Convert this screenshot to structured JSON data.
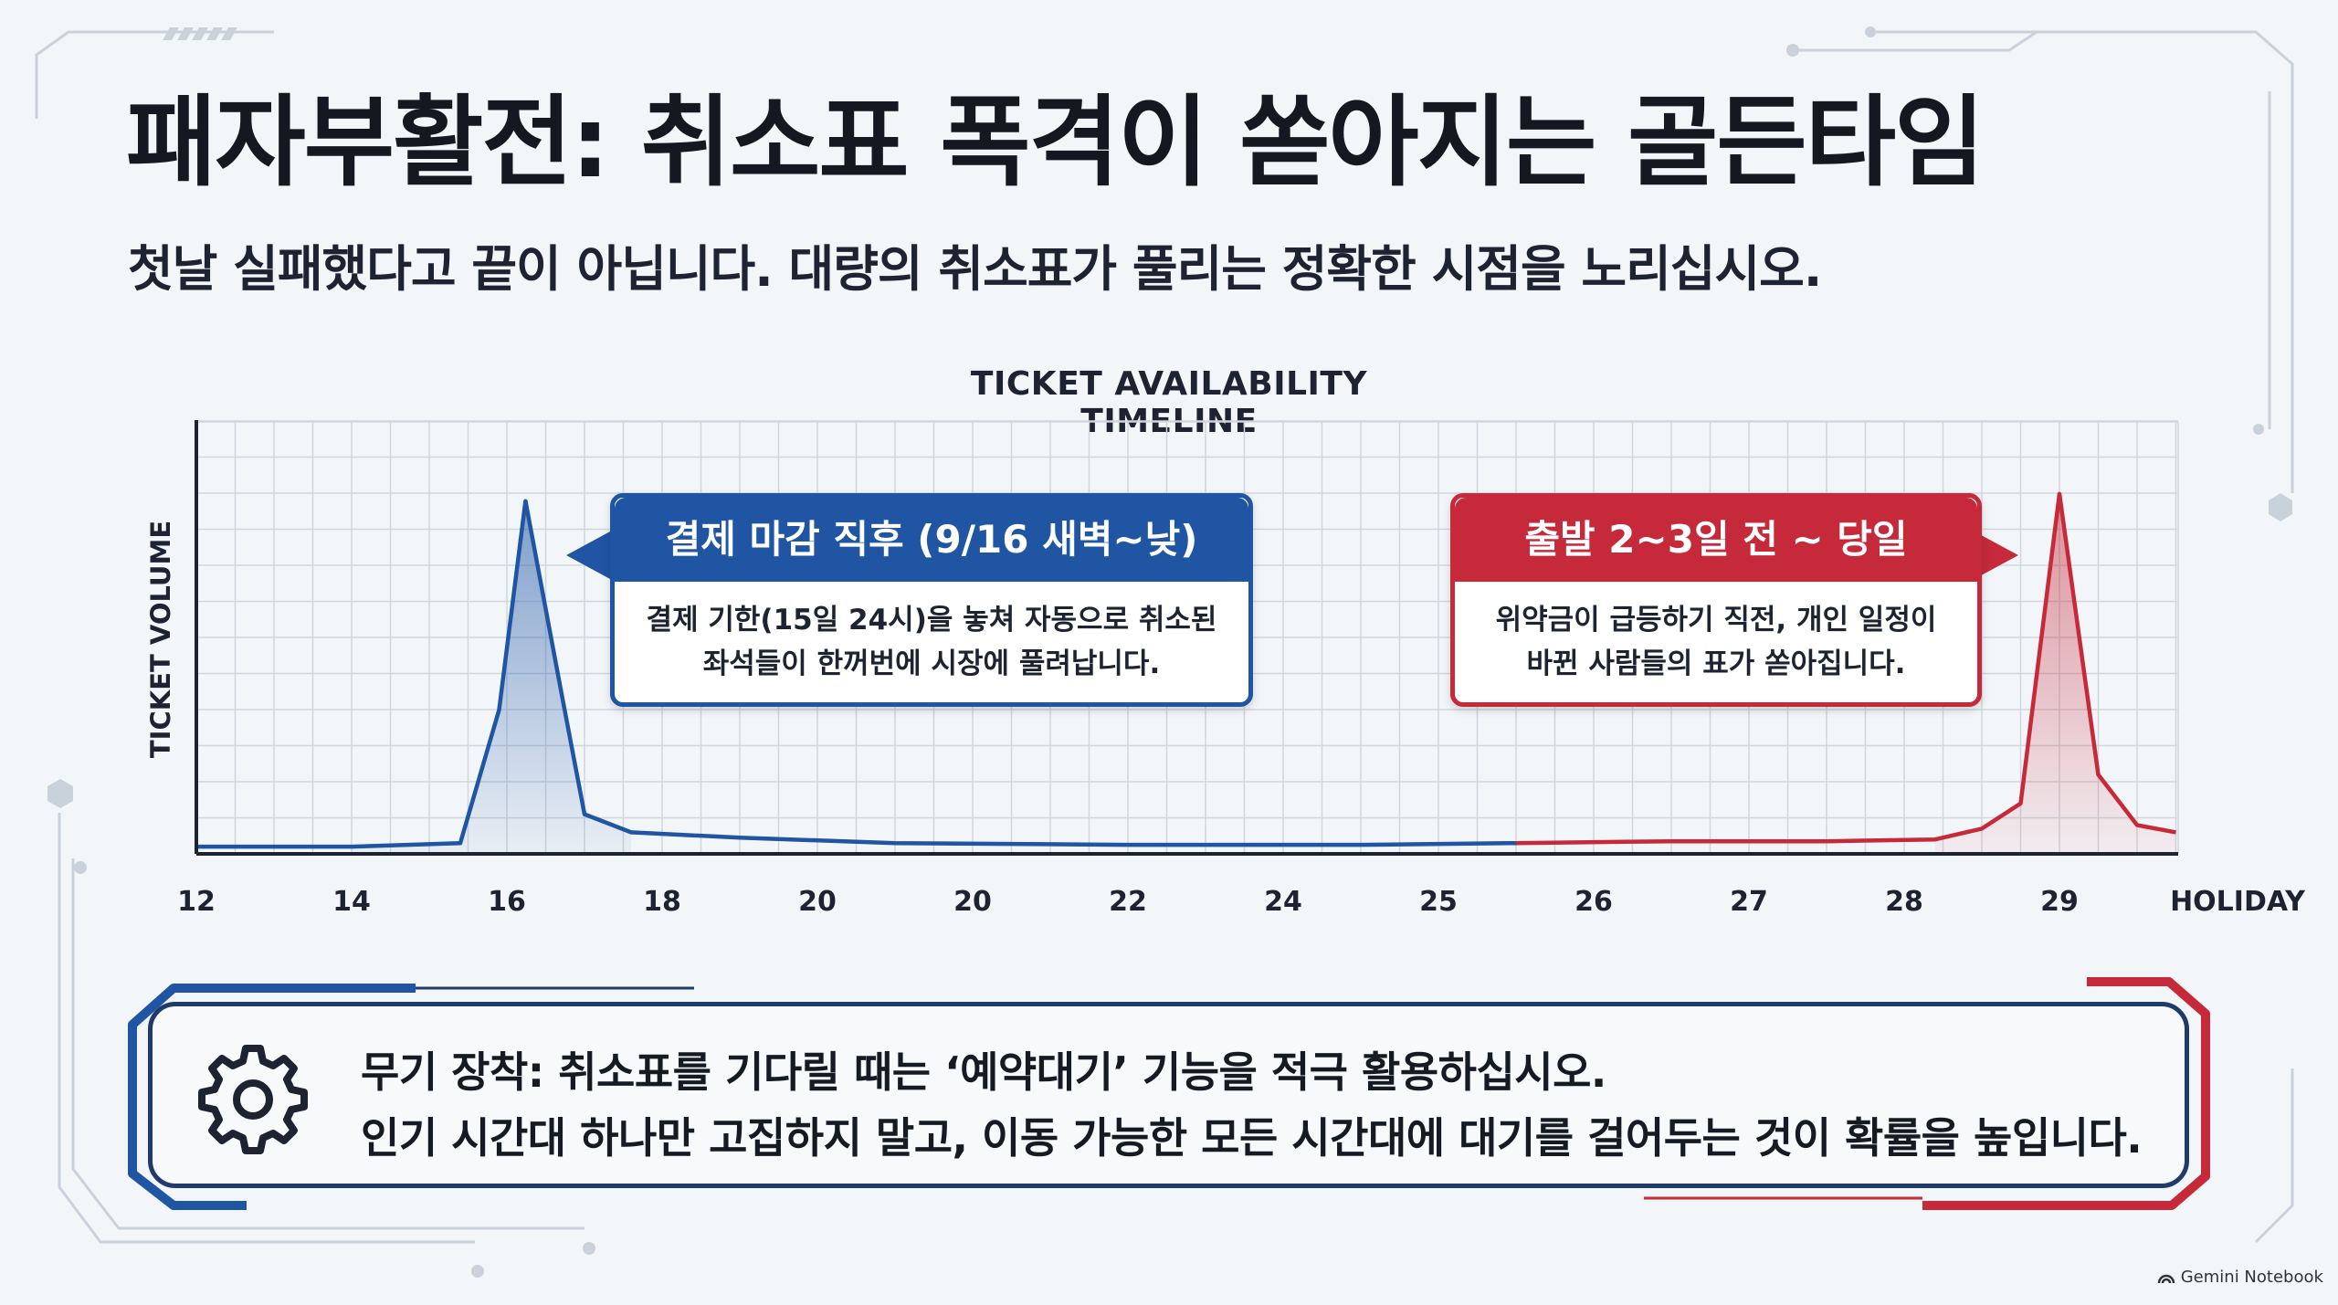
{
  "title": "패자부활전: 취소표 폭격이 쏟아지는 골든타임",
  "subtitle": "첫날 실패했다고 끝이 아닙니다. 대량의 취소표가 풀리는 정확한 시점을 노리십시오.",
  "chart_data": {
    "type": "line",
    "title": "TICKET AVAILABILITY TIMELINE",
    "ylabel": "TICKET VOLUME",
    "xlabel": "",
    "grid": true,
    "categories": [
      "12",
      "14",
      "16",
      "18",
      "20",
      "20",
      "22",
      "24",
      "25",
      "26",
      "27",
      "28",
      "29",
      "HOLIDAY"
    ],
    "series": [
      {
        "color": "#1f55a3",
        "points": [
          [
            0,
            2
          ],
          [
            1.0,
            2
          ],
          [
            1.7,
            3
          ],
          [
            1.95,
            40
          ],
          [
            2.12,
            98
          ],
          [
            2.35,
            45
          ],
          [
            2.5,
            11
          ],
          [
            2.8,
            6
          ],
          [
            3.5,
            4.5
          ],
          [
            4.5,
            3
          ],
          [
            6,
            2.5
          ],
          [
            7.5,
            2.5
          ],
          [
            8.5,
            3
          ]
        ]
      },
      {
        "color": "#c62a3a",
        "points": [
          [
            8.5,
            3
          ],
          [
            9.5,
            3.5
          ],
          [
            10.5,
            3.5
          ],
          [
            11.2,
            4
          ],
          [
            11.5,
            7
          ],
          [
            11.75,
            14
          ],
          [
            12.0,
            100
          ],
          [
            12.25,
            22
          ],
          [
            12.5,
            8
          ],
          [
            12.75,
            6
          ]
        ]
      }
    ],
    "ylim": [
      0,
      120
    ]
  },
  "callouts": {
    "blue": {
      "head": "결제 마감 직후 (9/16 새벽~낮)",
      "line1": "결제 기한(15일 24시)을 놓쳐 자동으로 취소된",
      "line2": "좌석들이 한꺼번에 시장에 풀려납니다."
    },
    "red": {
      "head": "출발 2~3일 전 ~ 당일",
      "line1": "위약금이 급등하기 직전, 개인 일정이",
      "line2": "바뀐 사람들의 표가 쏟아집니다."
    }
  },
  "tip": {
    "icon": "gear-icon",
    "line1": "무기 장착:  취소표를 기다릴 때는 ‘예약대기’ 기능을 적극 활용하십시오.",
    "line2": "인기 시간대 하나만 고집하지 말고, 이동 가능한 모든 시간대에 대기를 걸어두는 것이 확률을 높입니다."
  },
  "watermark": "Gemini Notebook",
  "colors": {
    "blue": "#1f55a3",
    "red": "#c62a3a",
    "navy": "#1f3a6b",
    "background": "#f3f6f9"
  }
}
